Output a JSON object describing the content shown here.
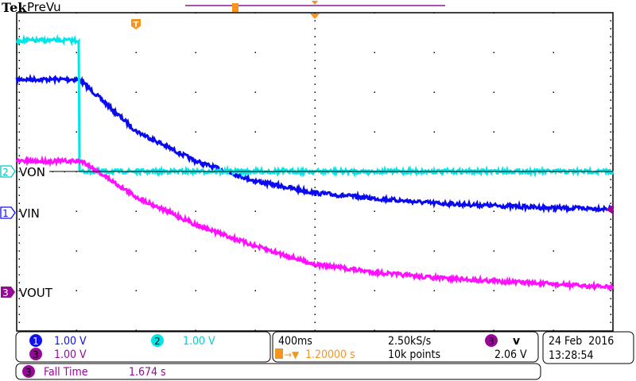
{
  "header": {
    "brand": "Tek",
    "mode": "PreVu"
  },
  "colors": {
    "ch1": "#0a0af0",
    "ch2": "#00e6e6",
    "ch3": "#ff10ff",
    "ch3_badge": "#980898",
    "trigger": "#f7941d",
    "record_bar": "#8a1a8a"
  },
  "channels": [
    {
      "number": "1",
      "label": "VIN",
      "scale": "1.00 V"
    },
    {
      "number": "2",
      "label": "VON",
      "scale": "1.00 V"
    },
    {
      "number": "3",
      "label": "VOUT",
      "scale": "1.00 V"
    }
  ],
  "trigger_marker": "T",
  "horizontal": {
    "time_per_div": "400ms",
    "sample_rate": "2.50kS/s",
    "delay": "1.20000 s",
    "record_length": "10k points"
  },
  "trigger": {
    "source": "3",
    "slope_icon": "falling-edge-icon",
    "slope_glyph": "ⅴ",
    "level": "2.06 V"
  },
  "datetime": {
    "date": "24 Feb  2016",
    "time": "13:28:54"
  },
  "measurement": {
    "source": "3",
    "name": "Fall Time",
    "value": "1.674 s"
  },
  "chart_data": {
    "type": "line",
    "xlim_s": [
      -0.8,
      3.2
    ],
    "x_div": 10,
    "y_div": 8,
    "volts_per_div": 1.0,
    "grid": true,
    "series": [
      {
        "name": "VIN",
        "channel": "1",
        "t": [
          -0.8,
          -0.38,
          0,
          0.4,
          0.8,
          1.2,
          1.6,
          2.0,
          2.4,
          2.8,
          3.2
        ],
        "v": [
          3.36,
          3.36,
          2.06,
          1.3,
          0.8,
          0.5,
          0.36,
          0.24,
          0.18,
          0.12,
          0.1
        ]
      },
      {
        "name": "VON",
        "channel": "2",
        "t": [
          -0.8,
          -0.38,
          -0.379,
          3.2
        ],
        "v": [
          3.3,
          3.3,
          0.0,
          0.0
        ]
      },
      {
        "name": "VOUT",
        "channel": "3",
        "t": [
          -0.8,
          -0.36,
          0,
          0.4,
          0.8,
          1.2,
          1.6,
          2.0,
          2.4,
          2.8,
          3.2
        ],
        "v": [
          3.3,
          3.3,
          2.4,
          1.7,
          1.16,
          0.7,
          0.5,
          0.36,
          0.28,
          0.2,
          0.12
        ]
      }
    ]
  }
}
